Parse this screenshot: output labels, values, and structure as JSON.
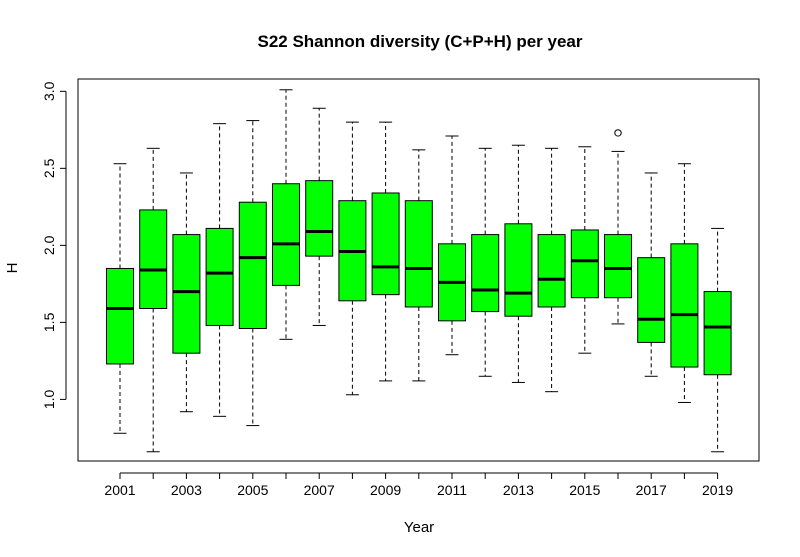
{
  "chart_data": {
    "type": "boxplot",
    "title": "S22 Shannon diversity (C+P+H) per year",
    "xlabel": "Year",
    "ylabel": "H",
    "categories": [
      "2001",
      "2002",
      "2003",
      "2004",
      "2005",
      "2006",
      "2007",
      "2008",
      "2009",
      "2010",
      "2011",
      "2012",
      "2013",
      "2014",
      "2015",
      "2016",
      "2017",
      "2018",
      "2019"
    ],
    "x_tick_labels": [
      "2001",
      "2003",
      "2005",
      "2007",
      "2009",
      "2011",
      "2013",
      "2015",
      "2017",
      "2019"
    ],
    "y_ticks": [
      "1.0",
      "1.5",
      "2.0",
      "2.5",
      "3.0"
    ],
    "ylim": [
      0.6,
      3.08
    ],
    "box_color": "#00ff00",
    "series": [
      {
        "boxes": [
          {
            "year": "2001",
            "min": 0.78,
            "q1": 1.23,
            "median": 1.59,
            "q3": 1.85,
            "max": 2.53
          },
          {
            "year": "2002",
            "min": 0.66,
            "q1": 1.59,
            "median": 1.84,
            "q3": 2.23,
            "max": 2.63
          },
          {
            "year": "2003",
            "min": 0.92,
            "q1": 1.3,
            "median": 1.7,
            "q3": 2.07,
            "max": 2.47
          },
          {
            "year": "2004",
            "min": 0.89,
            "q1": 1.48,
            "median": 1.82,
            "q3": 2.11,
            "max": 2.79
          },
          {
            "year": "2005",
            "min": 0.83,
            "q1": 1.46,
            "median": 1.92,
            "q3": 2.28,
            "max": 2.81
          },
          {
            "year": "2006",
            "min": 1.39,
            "q1": 1.74,
            "median": 2.01,
            "q3": 2.4,
            "max": 3.01
          },
          {
            "year": "2007",
            "min": 1.48,
            "q1": 1.93,
            "median": 2.09,
            "q3": 2.42,
            "max": 2.89
          },
          {
            "year": "2008",
            "min": 1.03,
            "q1": 1.64,
            "median": 1.96,
            "q3": 2.29,
            "max": 2.8
          },
          {
            "year": "2009",
            "min": 1.12,
            "q1": 1.68,
            "median": 1.86,
            "q3": 2.34,
            "max": 2.8
          },
          {
            "year": "2010",
            "min": 1.12,
            "q1": 1.6,
            "median": 1.85,
            "q3": 2.29,
            "max": 2.62
          },
          {
            "year": "2011",
            "min": 1.29,
            "q1": 1.51,
            "median": 1.76,
            "q3": 2.01,
            "max": 2.71
          },
          {
            "year": "2012",
            "min": 1.15,
            "q1": 1.57,
            "median": 1.71,
            "q3": 2.07,
            "max": 2.63
          },
          {
            "year": "2013",
            "min": 1.11,
            "q1": 1.54,
            "median": 1.69,
            "q3": 2.14,
            "max": 2.65
          },
          {
            "year": "2014",
            "min": 1.05,
            "q1": 1.6,
            "median": 1.78,
            "q3": 2.07,
            "max": 2.63
          },
          {
            "year": "2015",
            "min": 1.3,
            "q1": 1.66,
            "median": 1.9,
            "q3": 2.1,
            "max": 2.64
          },
          {
            "year": "2016",
            "min": 1.49,
            "q1": 1.66,
            "median": 1.85,
            "q3": 2.07,
            "max": 2.61,
            "outliers": [
              2.73
            ]
          },
          {
            "year": "2017",
            "min": 1.15,
            "q1": 1.37,
            "median": 1.52,
            "q3": 1.92,
            "max": 2.47
          },
          {
            "year": "2018",
            "min": 0.98,
            "q1": 1.21,
            "median": 1.55,
            "q3": 2.01,
            "max": 2.53
          },
          {
            "year": "2019",
            "min": 0.66,
            "q1": 1.16,
            "median": 1.47,
            "q3": 1.7,
            "max": 2.11
          }
        ]
      }
    ]
  }
}
